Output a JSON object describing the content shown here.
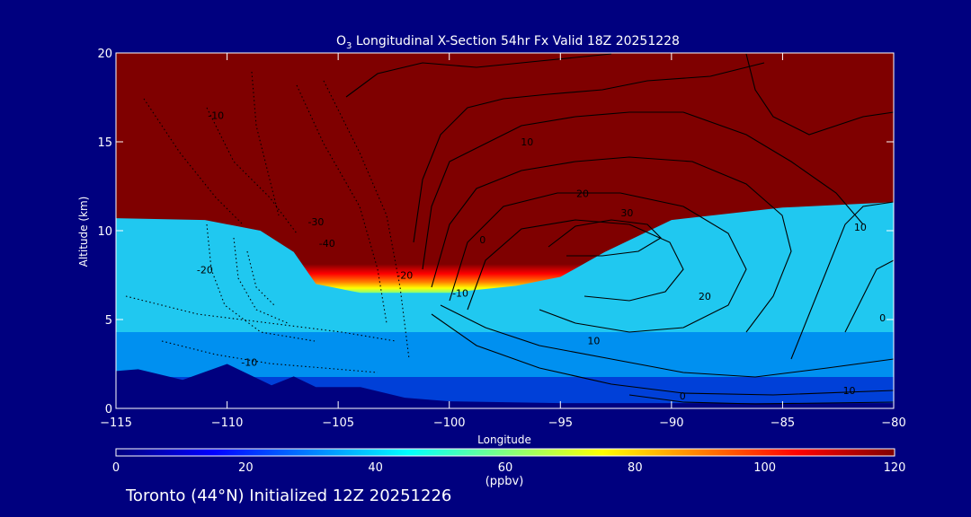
{
  "chart_data": {
    "type": "heatmap",
    "title": {
      "species": "O",
      "species_sub": "3",
      "rest": " Longitudinal X-Section 54hr  Fx Valid 18Z 20251228"
    },
    "xlabel": "Longitude",
    "ylabel": "Altitude (km)",
    "xlim": [
      -115,
      -80
    ],
    "ylim": [
      0,
      20
    ],
    "x_ticks": [
      -115,
      -110,
      -105,
      -100,
      -95,
      -90,
      -85,
      -80
    ],
    "x_tick_labels": [
      "−115",
      "−110",
      "−105",
      "−100",
      "−95",
      "−90",
      "−85",
      "−80"
    ],
    "y_ticks": [
      0,
      5,
      10,
      15,
      20
    ],
    "y_tick_labels": [
      "0",
      "5",
      "10",
      "15",
      "20"
    ],
    "colorbar": {
      "min": 0,
      "max": 120,
      "ticks": [
        0,
        20,
        40,
        60,
        80,
        100,
        120
      ],
      "tick_labels": [
        "0",
        "20",
        "40",
        "60",
        "80",
        "100",
        "120"
      ],
      "unit": "(ppbv)",
      "colormap": [
        "#00007f",
        "#0000ff",
        "#0080ff",
        "#00ffff",
        "#80ff80",
        "#ffff00",
        "#ff8000",
        "#ff0000",
        "#7f0000"
      ]
    },
    "ozone_field": {
      "tropopause_height_km": [
        {
          "lon": -115,
          "h": 10.7
        },
        {
          "lon": -111,
          "h": 10.6
        },
        {
          "lon": -108.5,
          "h": 10.0
        },
        {
          "lon": -107,
          "h": 8.8
        },
        {
          "lon": -106,
          "h": 7.0
        },
        {
          "lon": -104,
          "h": 6.5
        },
        {
          "lon": -100,
          "h": 6.5
        },
        {
          "lon": -97,
          "h": 6.9
        },
        {
          "lon": -95,
          "h": 7.4
        },
        {
          "lon": -93,
          "h": 8.8
        },
        {
          "lon": -90,
          "h": 10.6
        },
        {
          "lon": -85,
          "h": 11.3
        },
        {
          "lon": -80,
          "h": 11.6
        }
      ],
      "terrain_km": [
        {
          "lon": -115,
          "h": 2.1
        },
        {
          "lon": -114,
          "h": 2.2
        },
        {
          "lon": -112,
          "h": 1.6
        },
        {
          "lon": -110,
          "h": 2.5
        },
        {
          "lon": -108,
          "h": 1.3
        },
        {
          "lon": -107,
          "h": 1.8
        },
        {
          "lon": -106,
          "h": 1.2
        },
        {
          "lon": -104,
          "h": 1.2
        },
        {
          "lon": -102,
          "h": 0.6
        },
        {
          "lon": -100,
          "h": 0.4
        },
        {
          "lon": -95,
          "h": 0.3
        },
        {
          "lon": -90,
          "h": 0.3
        },
        {
          "lon": -85,
          "h": 0.3
        },
        {
          "lon": -80,
          "h": 0.3
        }
      ]
    },
    "wind_contour_labels": [
      {
        "text": "-10",
        "lon": -110.5,
        "alt": 16.3
      },
      {
        "text": "-20",
        "lon": -111,
        "alt": 7.6
      },
      {
        "text": "-30",
        "lon": -106,
        "alt": 10.3
      },
      {
        "text": "-40",
        "lon": -105.5,
        "alt": 9.1
      },
      {
        "text": "-10",
        "lon": -109,
        "alt": 2.4
      },
      {
        "text": "-20",
        "lon": -102,
        "alt": 7.3
      },
      {
        "text": "-10",
        "lon": -99.5,
        "alt": 6.3
      },
      {
        "text": "0",
        "lon": -98.5,
        "alt": 9.3
      },
      {
        "text": "10",
        "lon": -96.5,
        "alt": 14.8
      },
      {
        "text": "20",
        "lon": -94,
        "alt": 11.9
      },
      {
        "text": "30",
        "lon": -92,
        "alt": 10.8
      },
      {
        "text": "20",
        "lon": -88.5,
        "alt": 6.1
      },
      {
        "text": "10",
        "lon": -93.5,
        "alt": 3.6
      },
      {
        "text": "0",
        "lon": -89.5,
        "alt": 0.5
      },
      {
        "text": "10",
        "lon": -81.5,
        "alt": 10.0
      },
      {
        "text": "0",
        "lon": -80.5,
        "alt": 4.9
      },
      {
        "text": "10",
        "lon": -82,
        "alt": 0.8
      }
    ]
  },
  "footer": "Toronto (44°N) Initialized 12Z 20251226"
}
